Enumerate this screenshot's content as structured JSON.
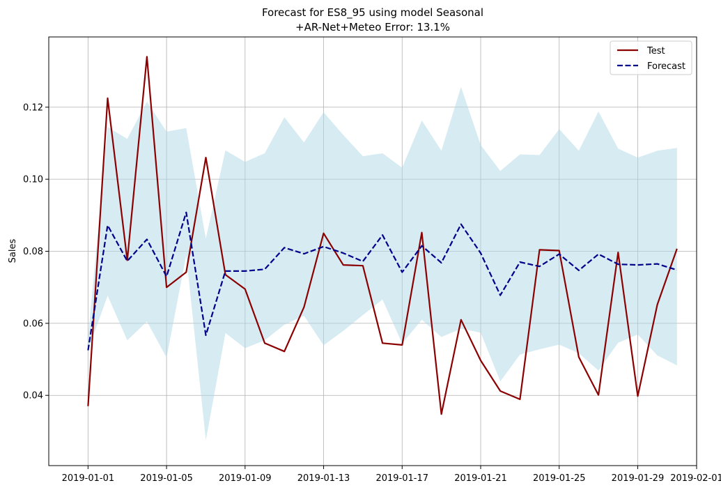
{
  "chart_data": {
    "type": "line",
    "title_lines": [
      "Forecast for ES8_95 using model Seasonal",
      "+AR-Net+Meteo Error: 13.1%"
    ],
    "xlabel": "",
    "ylabel": "Sales",
    "x_start": "2019-01-01",
    "x_ticks": [
      "2019-01-01",
      "2019-01-05",
      "2019-01-09",
      "2019-01-13",
      "2019-01-17",
      "2019-01-21",
      "2019-01-25",
      "2019-01-29",
      "2019-02-01"
    ],
    "y_ticks": [
      0.04,
      0.06,
      0.08,
      0.1,
      0.12
    ],
    "y_tick_labels": [
      "0.04",
      "0.06",
      "0.08",
      "0.10",
      "0.12"
    ],
    "xlim": [
      "2018-12-30",
      "2019-02-01"
    ],
    "ylim": [
      0.0205,
      0.1395
    ],
    "grid": true,
    "legend_position": "top-right",
    "dates": [
      "2019-01-01",
      "2019-01-02",
      "2019-01-03",
      "2019-01-04",
      "2019-01-05",
      "2019-01-06",
      "2019-01-07",
      "2019-01-08",
      "2019-01-09",
      "2019-01-10",
      "2019-01-11",
      "2019-01-12",
      "2019-01-13",
      "2019-01-14",
      "2019-01-15",
      "2019-01-16",
      "2019-01-17",
      "2019-01-18",
      "2019-01-19",
      "2019-01-20",
      "2019-01-21",
      "2019-01-22",
      "2019-01-23",
      "2019-01-24",
      "2019-01-25",
      "2019-01-26",
      "2019-01-27",
      "2019-01-28",
      "2019-01-29",
      "2019-01-30",
      "2019-01-31"
    ],
    "series": [
      {
        "name": "Test",
        "color": "#8b0000",
        "style": "solid",
        "values": [
          0.037,
          0.1225,
          0.0775,
          0.134,
          0.07,
          0.0742,
          0.106,
          0.0735,
          0.0695,
          0.0545,
          0.0522,
          0.0645,
          0.085,
          0.0762,
          0.076,
          0.0545,
          0.054,
          0.0852,
          0.0348,
          0.061,
          0.0497,
          0.0412,
          0.0389,
          0.0804,
          0.0802,
          0.0506,
          0.0401,
          0.0797,
          0.0398,
          0.0652,
          0.0807
        ]
      },
      {
        "name": "Forecast",
        "color": "#00008b",
        "style": "dashed",
        "values": [
          0.0525,
          0.0872,
          0.0773,
          0.0833,
          0.073,
          0.0908,
          0.0567,
          0.0745,
          0.0745,
          0.075,
          0.081,
          0.0793,
          0.0813,
          0.0795,
          0.0772,
          0.0845,
          0.0742,
          0.0815,
          0.0768,
          0.0875,
          0.0795,
          0.0678,
          0.077,
          0.0758,
          0.0792,
          0.0747,
          0.0792,
          0.0764,
          0.0762,
          0.0765,
          0.0748
        ]
      }
    ],
    "interval": {
      "color": "#add8e6",
      "upper": [
        0.056,
        0.1145,
        0.1112,
        0.1215,
        0.1132,
        0.1142,
        0.0835,
        0.108,
        0.1048,
        0.1072,
        0.1172,
        0.1102,
        0.1186,
        0.1123,
        0.1064,
        0.1072,
        0.1032,
        0.1163,
        0.1079,
        0.1256,
        0.1095,
        0.1023,
        0.1069,
        0.1067,
        0.1139,
        0.1079,
        0.1188,
        0.1085,
        0.106,
        0.1079,
        0.1087
      ],
      "lower": [
        0.0525,
        0.0677,
        0.0553,
        0.0605,
        0.0505,
        0.0789,
        0.0275,
        0.0573,
        0.0531,
        0.0553,
        0.0596,
        0.0621,
        0.0539,
        0.0579,
        0.0623,
        0.0666,
        0.0544,
        0.061,
        0.0562,
        0.0585,
        0.0574,
        0.0439,
        0.0513,
        0.0528,
        0.0541,
        0.0517,
        0.0469,
        0.0546,
        0.0569,
        0.0511,
        0.0483
      ]
    }
  }
}
